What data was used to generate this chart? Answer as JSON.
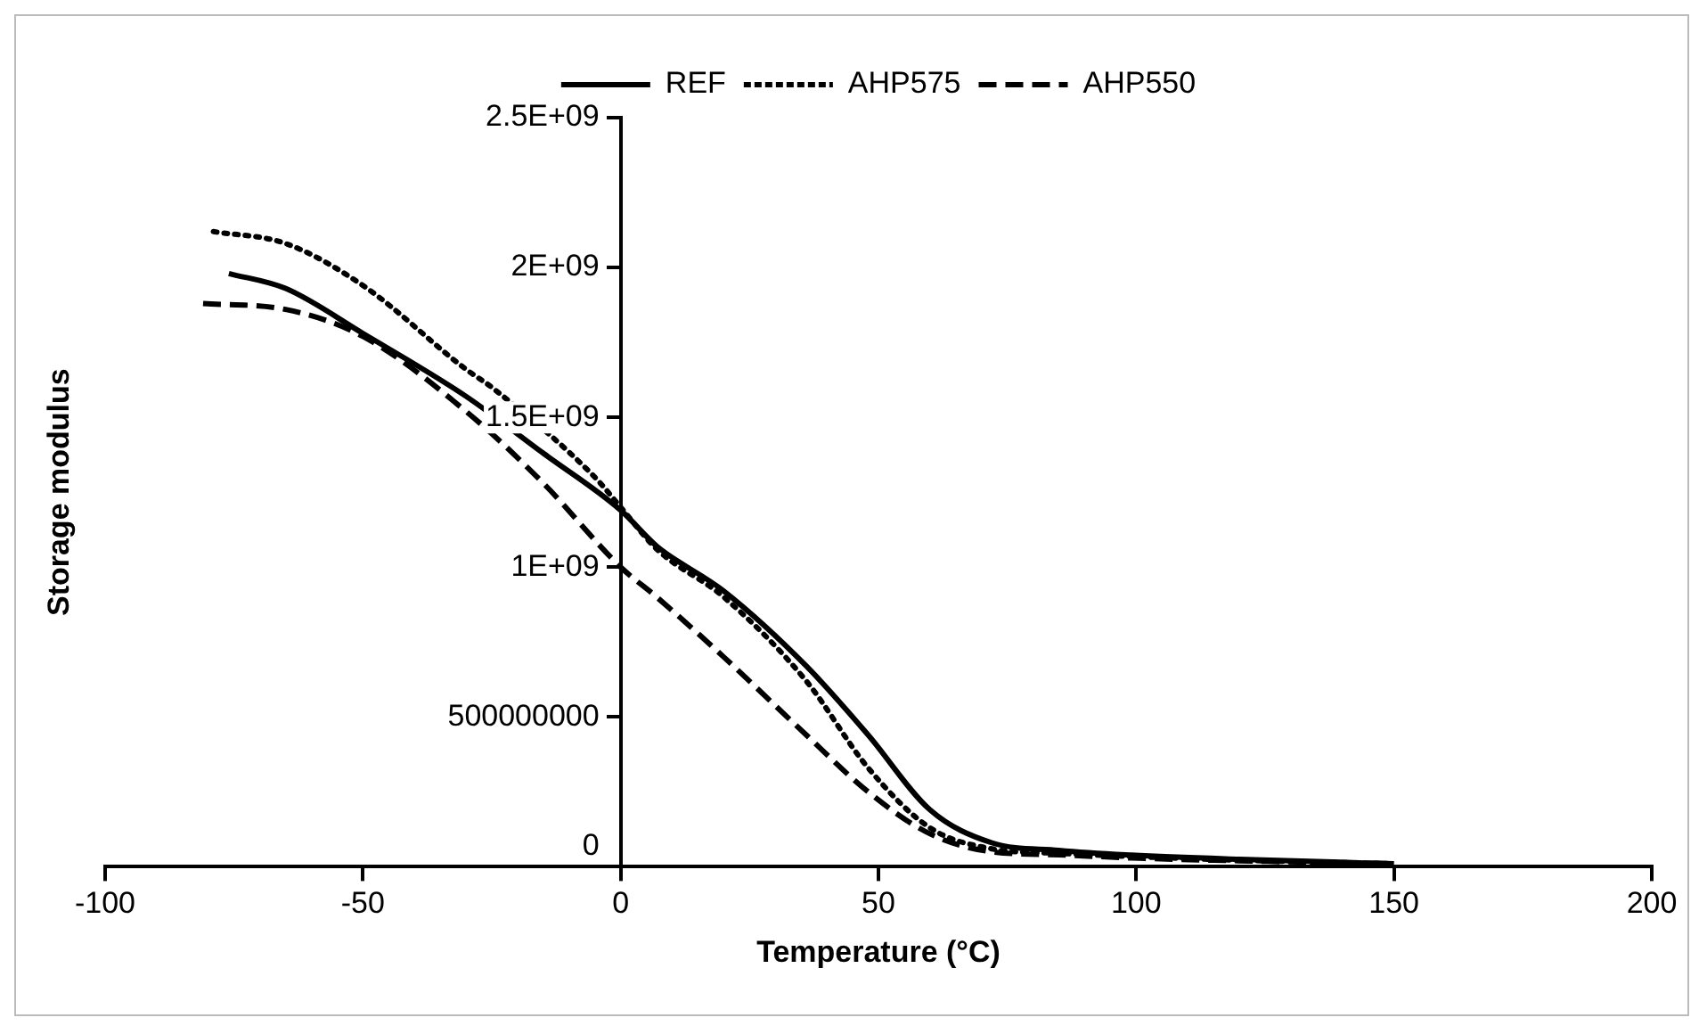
{
  "chart_data": {
    "type": "line",
    "xlabel": "Temperature (°C)",
    "ylabel": "Storage modulus",
    "legend": "top",
    "marker": "none",
    "grid": false,
    "xlim": [
      -100,
      200
    ],
    "xticks": [
      -100,
      -50,
      0,
      50,
      100,
      150,
      200
    ],
    "ylim": [
      0,
      2500000000
    ],
    "yticks": [
      0,
      500000000,
      {
        "value": 1000000000,
        "label": "1E+09"
      },
      {
        "value": 1500000000,
        "label": "1.5E+09"
      },
      {
        "value": 2000000000,
        "label": "2E+09"
      },
      {
        "value": 2500000000,
        "label": "2.5E+09"
      }
    ],
    "series": [
      {
        "name": "REF",
        "color": "#000000",
        "line_style": "solid",
        "x": [
          -76,
          -65,
          -50,
          -30,
          -15,
          0,
          7,
          20,
          36,
          48,
          60,
          72,
          85,
          98,
          120,
          150
        ],
        "values": [
          1980000000,
          1930000000,
          1780000000,
          1570000000,
          1380000000,
          1190000000,
          1070000000,
          920000000,
          670000000,
          440000000,
          190000000,
          80000000,
          55000000,
          40000000,
          25000000,
          10000000
        ]
      },
      {
        "name": "AHP575",
        "color": "#000000",
        "line_style": "dotted",
        "x": [
          -79,
          -65,
          -50,
          -30,
          -25,
          -5,
          0,
          7,
          20,
          36,
          48,
          60,
          72,
          85,
          98,
          120,
          150
        ],
        "values": [
          2120000000,
          2080000000,
          1940000000,
          1660000000,
          1600000000,
          1300000000,
          1200000000,
          1060000000,
          900000000,
          620000000,
          330000000,
          130000000,
          60000000,
          45000000,
          35000000,
          22000000,
          10000000
        ]
      },
      {
        "name": "AHP550",
        "color": "#000000",
        "line_style": "dashed",
        "x": [
          -81,
          -65,
          -50,
          -30,
          -15,
          0,
          7,
          20,
          36,
          48,
          60,
          72,
          85,
          98,
          120,
          150
        ],
        "values": [
          1880000000,
          1860000000,
          1770000000,
          1520000000,
          1280000000,
          1000000000,
          900000000,
          700000000,
          440000000,
          250000000,
          110000000,
          50000000,
          40000000,
          30000000,
          20000000,
          10000000
        ]
      }
    ]
  }
}
